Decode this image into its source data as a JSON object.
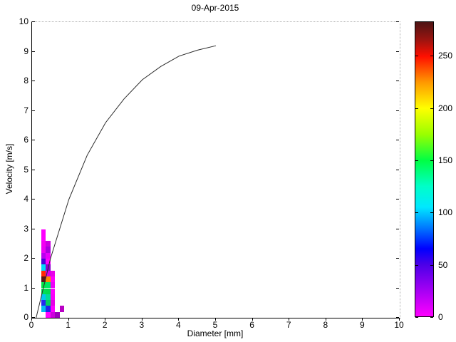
{
  "chart_data": {
    "type": "heatmap",
    "title": "09-Apr-2015",
    "xlabel": "Diameter [mm]",
    "ylabel": "Velocity [m/s]",
    "xlim": [
      0,
      10
    ],
    "ylim": [
      0,
      10
    ],
    "xticks": [
      0,
      1,
      2,
      3,
      4,
      5,
      6,
      7,
      8,
      9,
      10
    ],
    "yticks": [
      0,
      1,
      2,
      3,
      4,
      5,
      6,
      7,
      8,
      9,
      10
    ],
    "grid": false,
    "cell_size": {
      "d_mm": 0.125,
      "v_ms": 0.2
    },
    "cells": [
      {
        "d": 0.25,
        "v": 2.8,
        "count": 8,
        "color": "#ff00ff"
      },
      {
        "d": 0.25,
        "v": 2.6,
        "count": 10,
        "color": "#ff00ff"
      },
      {
        "d": 0.25,
        "v": 2.4,
        "count": 12,
        "color": "#f400f4"
      },
      {
        "d": 0.25,
        "v": 2.2,
        "count": 14,
        "color": "#ee00f6"
      },
      {
        "d": 0.25,
        "v": 2.0,
        "count": 30,
        "color": "#b800f0"
      },
      {
        "d": 0.25,
        "v": 1.8,
        "count": 55,
        "color": "#4a00d8"
      },
      {
        "d": 0.25,
        "v": 1.6,
        "count": 110,
        "color": "#00d8f8"
      },
      {
        "d": 0.25,
        "v": 1.4,
        "count": 252,
        "color": "#ff2a00"
      },
      {
        "d": 0.25,
        "v": 1.2,
        "count": 282,
        "color": "#581414"
      },
      {
        "d": 0.25,
        "v": 1.0,
        "count": 152,
        "color": "#00e848"
      },
      {
        "d": 0.25,
        "v": 0.8,
        "count": 148,
        "color": "#00e055"
      },
      {
        "d": 0.25,
        "v": 0.6,
        "count": 100,
        "color": "#00c8f0"
      },
      {
        "d": 0.25,
        "v": 0.4,
        "count": 62,
        "color": "#2428f0"
      },
      {
        "d": 0.25,
        "v": 0.2,
        "count": 95,
        "color": "#00bbf0"
      },
      {
        "d": 0.375,
        "v": 2.4,
        "count": 22,
        "color": "#cc00e0"
      },
      {
        "d": 0.375,
        "v": 2.2,
        "count": 35,
        "color": "#a800dd"
      },
      {
        "d": 0.375,
        "v": 2.0,
        "count": 15,
        "color": "#e800fa"
      },
      {
        "d": 0.375,
        "v": 1.8,
        "count": 10,
        "color": "#ff00ff"
      },
      {
        "d": 0.375,
        "v": 1.6,
        "count": 42,
        "color": "#8a00cc"
      },
      {
        "d": 0.375,
        "v": 1.4,
        "count": 18,
        "color": "#d400e8"
      },
      {
        "d": 0.375,
        "v": 1.2,
        "count": 215,
        "color": "#ff8800"
      },
      {
        "d": 0.375,
        "v": 1.0,
        "count": 145,
        "color": "#00e862"
      },
      {
        "d": 0.375,
        "v": 0.8,
        "count": 150,
        "color": "#00dc50"
      },
      {
        "d": 0.375,
        "v": 0.6,
        "count": 128,
        "color": "#00dc96"
      },
      {
        "d": 0.375,
        "v": 0.4,
        "count": 140,
        "color": "#00d060"
      },
      {
        "d": 0.375,
        "v": 0.2,
        "count": 60,
        "color": "#2222e8"
      },
      {
        "d": 0.375,
        "v": 0.0,
        "count": 8,
        "color": "#ff00ff"
      },
      {
        "d": 0.5,
        "v": 1.4,
        "count": 12,
        "color": "#ea00ea"
      },
      {
        "d": 0.5,
        "v": 1.2,
        "count": 9,
        "color": "#ff00ff"
      },
      {
        "d": 0.5,
        "v": 1.0,
        "count": 11,
        "color": "#ee00fa"
      },
      {
        "d": 0.5,
        "v": 0.8,
        "count": 8,
        "color": "#ff00ff"
      },
      {
        "d": 0.5,
        "v": 0.6,
        "count": 9,
        "color": "#fa00fa"
      },
      {
        "d": 0.5,
        "v": 0.4,
        "count": 13,
        "color": "#e600e6"
      },
      {
        "d": 0.5,
        "v": 0.2,
        "count": 7,
        "color": "#ff00ff"
      },
      {
        "d": 0.5,
        "v": 0.0,
        "count": 20,
        "color": "#cc00dd"
      },
      {
        "d": 0.625,
        "v": 0.0,
        "count": 38,
        "color": "#9b00bb"
      },
      {
        "d": 0.75,
        "v": 0.2,
        "count": 28,
        "color": "#b800c4"
      }
    ],
    "curve": {
      "name": "terminal-velocity-curve",
      "color": "#2b2b2b",
      "points": [
        [
          0.11,
          0.0
        ],
        [
          0.5,
          2.0
        ],
        [
          1.0,
          4.0
        ],
        [
          1.5,
          5.5
        ],
        [
          2.0,
          6.6
        ],
        [
          2.5,
          7.4
        ],
        [
          3.0,
          8.05
        ],
        [
          3.5,
          8.5
        ],
        [
          4.0,
          8.85
        ],
        [
          4.5,
          9.05
        ],
        [
          5.0,
          9.2
        ]
      ]
    },
    "colorbar": {
      "min": 0,
      "max": 283,
      "ticks": [
        0,
        50,
        100,
        150,
        200,
        250
      ],
      "stops": [
        [
          0,
          "#ff00ff"
        ],
        [
          50,
          "#4a00e8"
        ],
        [
          65,
          "#0000ff"
        ],
        [
          85,
          "#0077ff"
        ],
        [
          105,
          "#00e8ff"
        ],
        [
          125,
          "#00ffc8"
        ],
        [
          150,
          "#00ff44"
        ],
        [
          175,
          "#99ff00"
        ],
        [
          200,
          "#ffff00"
        ],
        [
          225,
          "#ff9900"
        ],
        [
          250,
          "#ff0f00"
        ],
        [
          266,
          "#9b1410"
        ],
        [
          283,
          "#4d1414"
        ]
      ]
    }
  }
}
